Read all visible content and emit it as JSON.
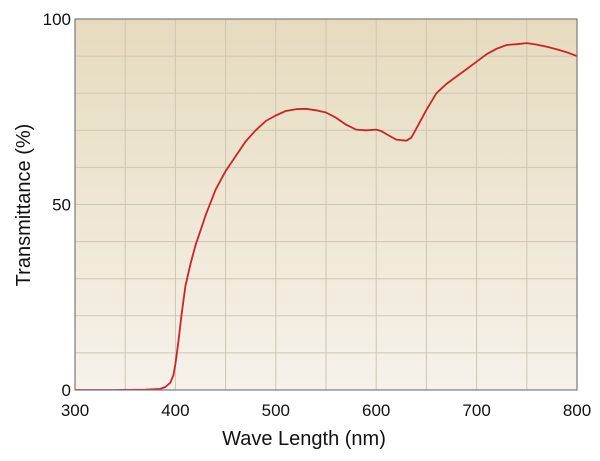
{
  "chart_data": {
    "type": "line",
    "title": "",
    "xlabel": "Wave Length (nm)",
    "ylabel": "Transmittance (%)",
    "xlim": [
      300,
      800
    ],
    "ylim": [
      0,
      100
    ],
    "x_ticks": [
      300,
      400,
      500,
      600,
      700,
      800
    ],
    "y_ticks": [
      0,
      50,
      100
    ],
    "grid": true,
    "legend": "none",
    "colors": {
      "line": "#cc2229",
      "background_top": "#e6dbbe",
      "background_bottom": "#f6f2ea",
      "grid": "#cfc6b2",
      "frame": "#7a7a7a"
    },
    "series": [
      {
        "x": [
          300,
          340,
          370,
          385,
          390,
          395,
          398,
          400,
          403,
          406,
          410,
          415,
          420,
          425,
          430,
          440,
          450,
          460,
          470,
          480,
          490,
          500,
          510,
          520,
          530,
          540,
          550,
          560,
          570,
          580,
          590,
          600,
          605,
          610,
          620,
          630,
          635,
          640,
          650,
          660,
          670,
          680,
          690,
          700,
          710,
          720,
          730,
          740,
          750,
          755,
          760,
          765,
          770,
          780,
          790,
          795,
          800
        ],
        "y": [
          0,
          0,
          0.1,
          0.3,
          0.8,
          2,
          4,
          7,
          13,
          20,
          28,
          34,
          39,
          43,
          47,
          54,
          59,
          63,
          67,
          70,
          72.5,
          74,
          75.2,
          75.7,
          75.8,
          75.4,
          74.8,
          73.4,
          71.5,
          70.2,
          70,
          70.2,
          69.8,
          69,
          67.5,
          67.2,
          68,
          70.5,
          75.5,
          80,
          82.5,
          84.5,
          86.5,
          88.5,
          90.5,
          92,
          93,
          93.2,
          93.5,
          93.3,
          93.1,
          92.8,
          92.5,
          91.8,
          91,
          90.5,
          90
        ]
      }
    ]
  }
}
